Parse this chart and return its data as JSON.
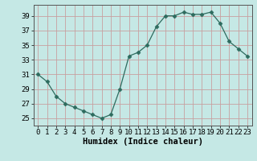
{
  "x": [
    0,
    1,
    2,
    3,
    4,
    5,
    6,
    7,
    8,
    9,
    10,
    11,
    12,
    13,
    14,
    15,
    16,
    17,
    18,
    19,
    20,
    21,
    22,
    23
  ],
  "y": [
    31,
    30,
    28,
    27,
    26.5,
    26,
    25.5,
    25,
    25.5,
    29,
    33.5,
    34,
    35,
    37.5,
    39,
    39,
    39.5,
    39.2,
    39.2,
    39.5,
    38,
    35.5,
    34.5,
    33.5
  ],
  "line_color": "#2d6b5e",
  "marker": "D",
  "marker_size": 2.5,
  "bg_color": "#c5e8e5",
  "grid_color": "#c8a0a0",
  "xlabel": "Humidex (Indice chaleur)",
  "xlim": [
    -0.5,
    23.5
  ],
  "ylim": [
    24,
    40.5
  ],
  "yticks": [
    25,
    27,
    29,
    31,
    33,
    35,
    37,
    39
  ],
  "xticks": [
    0,
    1,
    2,
    3,
    4,
    5,
    6,
    7,
    8,
    9,
    10,
    11,
    12,
    13,
    14,
    15,
    16,
    17,
    18,
    19,
    20,
    21,
    22,
    23
  ],
  "xlabel_fontsize": 7.5,
  "tick_fontsize": 6.5
}
